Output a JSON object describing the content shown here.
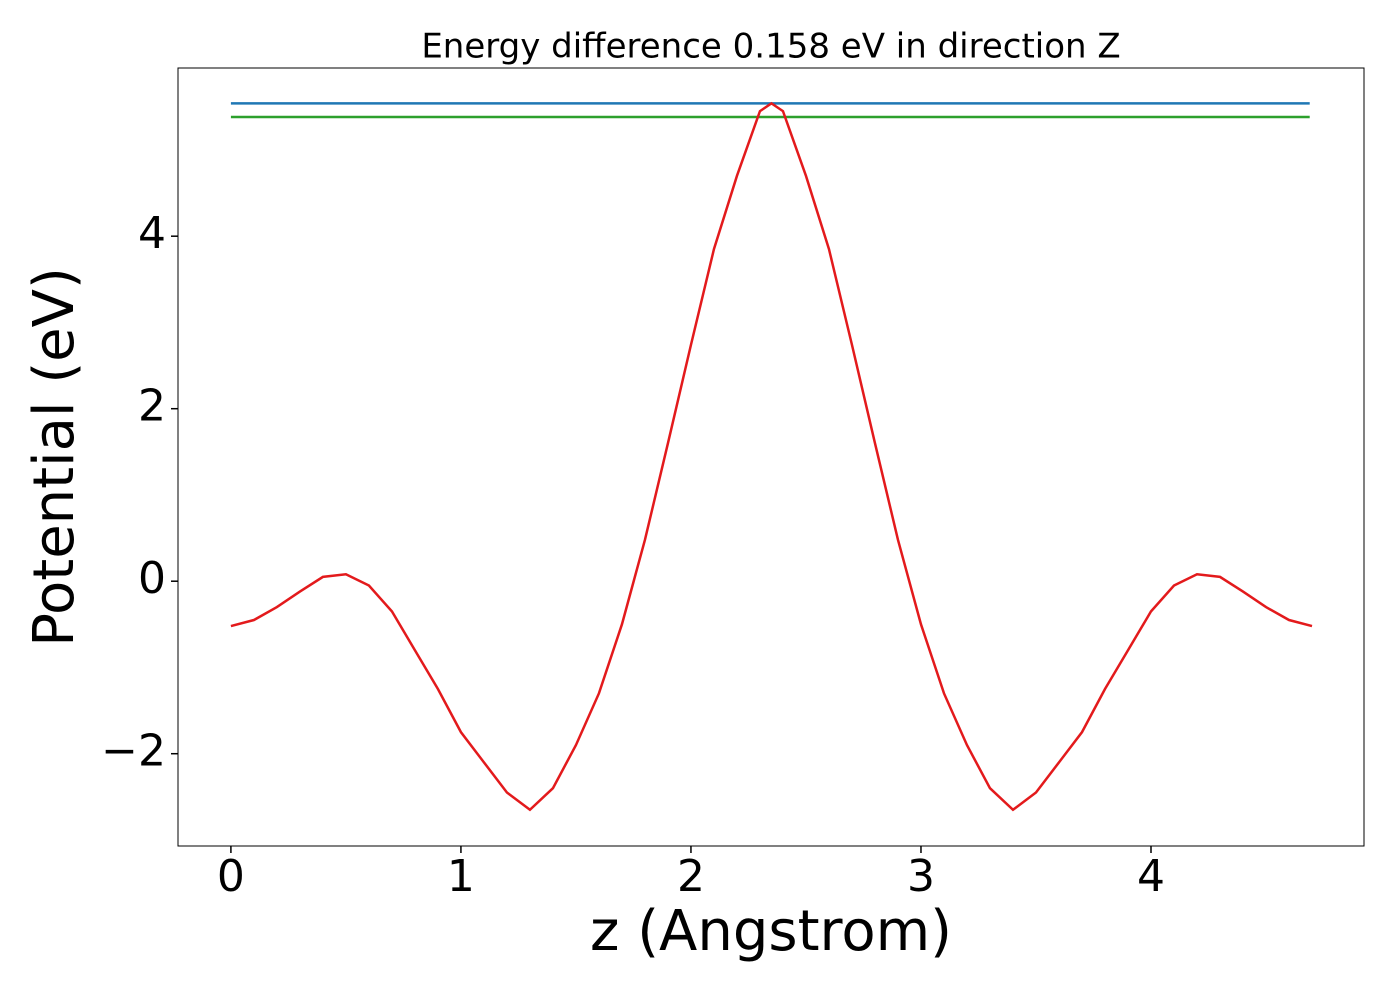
{
  "chart_data": {
    "type": "line",
    "title": "Energy difference 0.158 eV in direction Z",
    "xlabel": "z (Angstrom)",
    "ylabel": "Potential (eV)",
    "xlim": [
      -0.23,
      4.926
    ],
    "ylim": [
      -3.07,
      5.95
    ],
    "xticks": [
      0,
      1,
      2,
      3,
      4
    ],
    "yticks": [
      {
        "value": -2,
        "label": "−2"
      },
      0,
      2,
      4
    ],
    "series": [
      {
        "color": "#1f77b4",
        "x": [
          0,
          4.69
        ],
        "values": [
          5.54,
          5.54
        ]
      },
      {
        "color": "#2ca02c",
        "x": [
          0,
          4.69
        ],
        "values": [
          5.382,
          5.382
        ]
      },
      {
        "color": "#e31a1c",
        "x": [
          0,
          0.1,
          0.2,
          0.3,
          0.4,
          0.5,
          0.6,
          0.7,
          0.8,
          0.9,
          1.0,
          1.1,
          1.2,
          1.3,
          1.4,
          1.5,
          1.6,
          1.7,
          1.8,
          1.9,
          2.0,
          2.1,
          2.2,
          2.3,
          2.35,
          2.4,
          2.5,
          2.6,
          2.7,
          2.8,
          2.9,
          3.0,
          3.1,
          3.2,
          3.3,
          3.4,
          3.5,
          3.6,
          3.7,
          3.8,
          3.9,
          4.0,
          4.1,
          4.2,
          4.3,
          4.4,
          4.5,
          4.6,
          4.7
        ],
        "values": [
          -0.52,
          -0.45,
          -0.3,
          -0.12,
          0.05,
          0.08,
          -0.05,
          -0.35,
          -0.8,
          -1.25,
          -1.75,
          -2.1,
          -2.45,
          -2.65,
          -2.4,
          -1.9,
          -1.3,
          -0.5,
          0.48,
          1.6,
          2.74,
          3.85,
          4.7,
          5.45,
          5.54,
          5.45,
          4.7,
          3.85,
          2.74,
          1.6,
          0.48,
          -0.5,
          -1.3,
          -1.9,
          -2.4,
          -2.65,
          -2.45,
          -2.1,
          -1.75,
          -1.25,
          -0.8,
          -0.35,
          -0.05,
          0.08,
          0.05,
          -0.12,
          -0.3,
          -0.45,
          -0.52
        ]
      }
    ]
  }
}
